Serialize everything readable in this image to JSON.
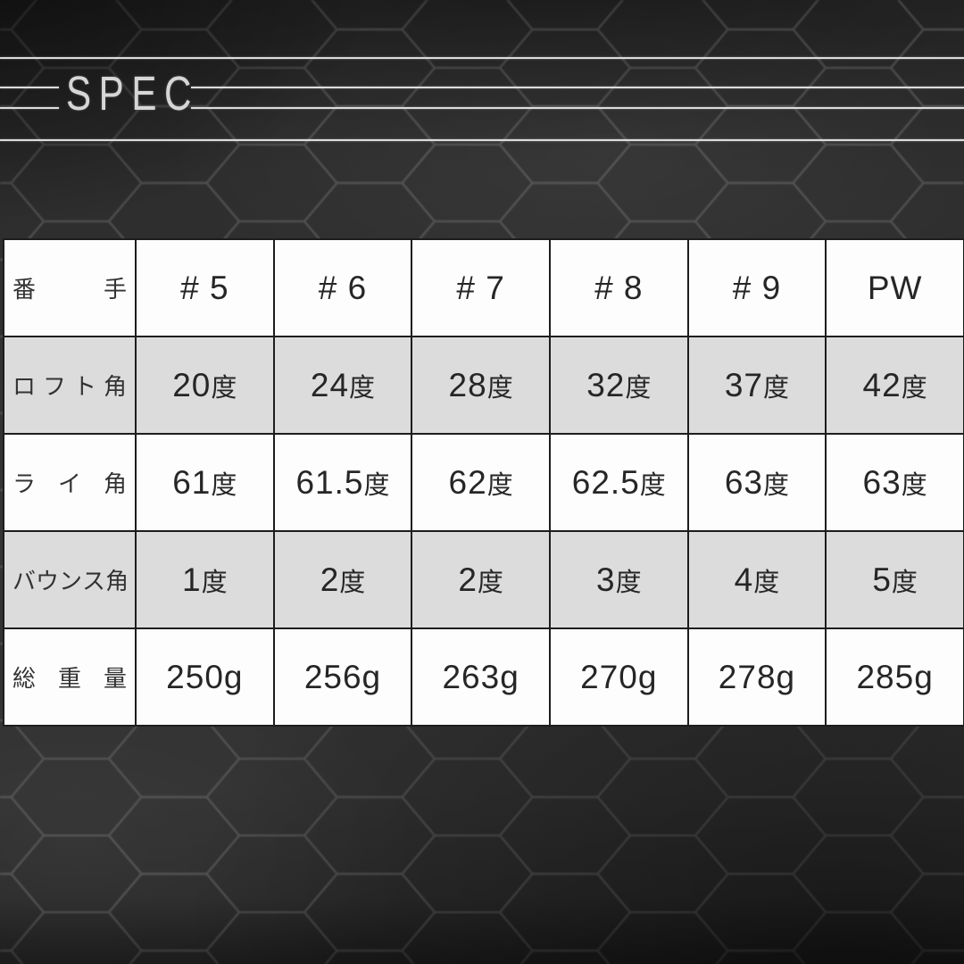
{
  "title": {
    "text": "SPEC"
  },
  "table": {
    "rows": [
      {
        "header": "番手",
        "values": [
          "# 5",
          "# 6",
          "# 7",
          "# 8",
          "# 9",
          "PW"
        ],
        "shaded": false
      },
      {
        "header": "ロフト角",
        "values": [
          "20度",
          "24度",
          "28度",
          "32度",
          "37度",
          "42度"
        ],
        "shaded": true
      },
      {
        "header": "ライ角",
        "values": [
          "61度",
          "61.5度",
          "62度",
          "62.5度",
          "63度",
          "63度"
        ],
        "shaded": false
      },
      {
        "header": "バウンス角",
        "values": [
          "1度",
          "2度",
          "2度",
          "3度",
          "4度",
          "5度"
        ],
        "shaded": true
      },
      {
        "header": "総重量",
        "values": [
          "250g",
          "256g",
          "263g",
          "270g",
          "278g",
          "285g"
        ],
        "shaded": false
      }
    ]
  },
  "chart_data": {
    "type": "table",
    "title": "SPEC",
    "columns": [
      "番手",
      "# 5",
      "# 6",
      "# 7",
      "# 8",
      "# 9",
      "PW"
    ],
    "rows": [
      [
        "ロフト角",
        "20度",
        "24度",
        "28度",
        "32度",
        "37度",
        "42度"
      ],
      [
        "ライ角",
        "61度",
        "61.5度",
        "62度",
        "62.5度",
        "63度",
        "63度"
      ],
      [
        "バウンス角",
        "1度",
        "2度",
        "2度",
        "3度",
        "4度",
        "5度"
      ],
      [
        "総重量",
        "250g",
        "256g",
        "263g",
        "270g",
        "278g",
        "285g"
      ]
    ]
  },
  "colors": {
    "background": "#2e2e2e",
    "hex_pattern_stroke": "#5c5c5c",
    "divider_line": "#dcdcdc",
    "row_plain": "#fdfdfd",
    "row_shaded": "#dcdcdd",
    "cell_border": "#1d1d1d",
    "cell_text": "#262626"
  }
}
